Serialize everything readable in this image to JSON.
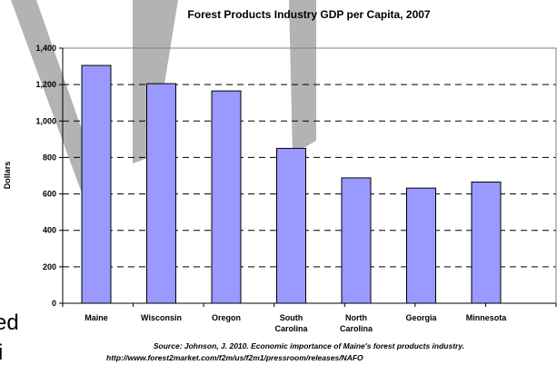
{
  "chart_data": {
    "type": "bar",
    "title": "Forest Products Industry GDP per Capita, 2007",
    "ylabel": "Dollars",
    "xlabel": "",
    "categories": [
      [
        "Maine"
      ],
      [
        "Wisconsin"
      ],
      [
        "Oregon"
      ],
      [
        "South",
        "Carolina"
      ],
      [
        "North",
        "Carolina"
      ],
      [
        "Georgia"
      ],
      [
        "Minnesota"
      ]
    ],
    "values": [
      1305,
      1205,
      1165,
      850,
      688,
      632,
      665
    ],
    "ylim": [
      0,
      1400
    ],
    "yticks": [
      0,
      200,
      400,
      600,
      800,
      1000,
      1200,
      1400
    ],
    "ytick_labels": [
      "0",
      "200",
      "400",
      "600",
      "800",
      "1,000",
      "1,200",
      "1,400"
    ],
    "grid": true,
    "bar_color": "#9999ff",
    "bar_edge_color": "#000000",
    "source": {
      "line1": "Source:  Johnson, J.  2010.  Economic importance of Maine's forest products industry.",
      "line2": "http://www.forest2market.com/f2m/us/f2m1/pressroom/releases/NAFO"
    }
  },
  "colors": {
    "watermark": "#b3b3b3",
    "text_fragment": "#000000"
  },
  "edge_text": [
    "ed",
    "i"
  ]
}
